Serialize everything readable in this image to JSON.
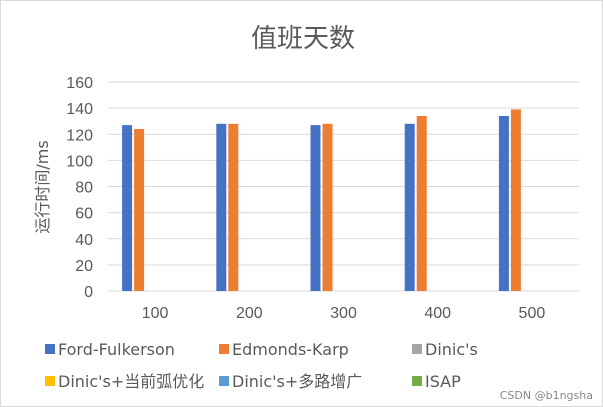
{
  "chart_data": {
    "type": "bar",
    "title": "值班天数",
    "xlabel": "",
    "ylabel": "运行时间/ms",
    "ylim": [
      0,
      160
    ],
    "yticks": [
      0,
      20,
      40,
      60,
      80,
      100,
      120,
      140,
      160
    ],
    "categories": [
      "100",
      "200",
      "300",
      "400",
      "500"
    ],
    "grid": true,
    "legend_placement": "bottom",
    "series": [
      {
        "name": "Ford-Fulkerson",
        "color": "#4472c4",
        "values": [
          127,
          128,
          127,
          128,
          134
        ]
      },
      {
        "name": "Edmonds-Karp",
        "color": "#ed7d31",
        "values": [
          124,
          128,
          128,
          134,
          139
        ]
      },
      {
        "name": "Dinic's",
        "color": "#a5a5a5",
        "values": [
          null,
          null,
          null,
          null,
          null
        ]
      },
      {
        "name": "Dinic's+当前弧优化",
        "color": "#ffc000",
        "values": [
          null,
          null,
          null,
          null,
          null
        ]
      },
      {
        "name": "Dinic's+多路增广",
        "color": "#5b9bd5",
        "values": [
          null,
          null,
          null,
          null,
          null
        ]
      },
      {
        "name": "ISAP",
        "color": "#70ad47",
        "values": [
          null,
          null,
          null,
          null,
          null
        ]
      }
    ]
  },
  "watermark": "CSDN @b1ngsha"
}
